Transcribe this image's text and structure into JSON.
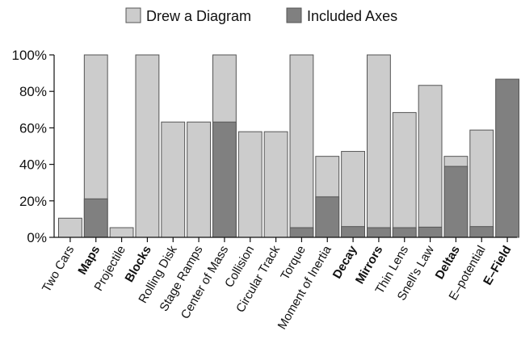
{
  "chart_data": {
    "type": "bar",
    "title": "",
    "xlabel": "",
    "ylabel": "",
    "ylim": [
      0,
      1
    ],
    "yticks": [
      0,
      0.2,
      0.4,
      0.6,
      0.8,
      1.0
    ],
    "ytick_labels": [
      "0%",
      "20%",
      "40%",
      "60%",
      "80%",
      "100%"
    ],
    "legend_position": "top-center",
    "grid": false,
    "colors": {
      "diagram": "#cccccc",
      "axes": "#808080",
      "edge": "#555555"
    },
    "categories": [
      "Two Cars",
      "Maps",
      "Projectile",
      "Blocks",
      "Rolling Disk",
      "Stage Ramps",
      "Center of Mass",
      "Collision",
      "Circular Track",
      "Torque",
      "Moment of Inertia",
      "Decay",
      "Mirrors",
      "Thin Lens",
      "Snell's Law",
      "Deltas",
      "E–potential",
      "E–Field"
    ],
    "bold_categories": [
      "Maps",
      "Blocks",
      "Decay",
      "Mirrors",
      "Deltas",
      "E–Field"
    ],
    "series": [
      {
        "name": "Drew a Diagram",
        "values": [
          0.105,
          1.0,
          0.053,
          1.0,
          0.632,
          0.632,
          1.0,
          0.579,
          0.579,
          1.0,
          0.444,
          0.471,
          1.0,
          0.684,
          0.833,
          0.444,
          0.588,
          0.0
        ]
      },
      {
        "name": "Included Axes",
        "values": [
          0.0,
          0.211,
          0.0,
          0.0,
          0.0,
          0.0,
          0.632,
          0.0,
          0.0,
          0.053,
          0.222,
          0.059,
          0.053,
          0.053,
          0.056,
          0.389,
          0.059,
          0.867
        ]
      }
    ]
  }
}
